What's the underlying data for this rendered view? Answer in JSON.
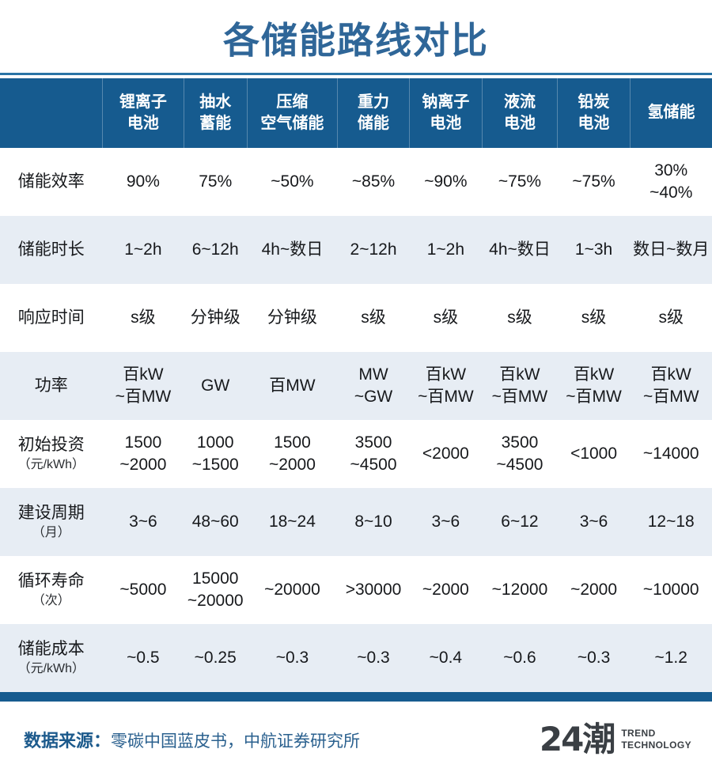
{
  "page": {
    "title": "各储能路线对比"
  },
  "colors": {
    "header_bg": "#165b8f",
    "row_alt_bg": "#e7edf4",
    "title_blue": "#2f6698",
    "footer_blue": "#1c5a8c",
    "logo_gray": "#3a3f44"
  },
  "table": {
    "columns": [
      "锂离子\n电池",
      "抽水\n蓄能",
      "压缩\n空气储能",
      "重力\n储能",
      "钠离子\n电池",
      "液流\n电池",
      "铅炭\n电池",
      "氢储能"
    ],
    "rows": [
      {
        "label": "储能效率",
        "unit": "",
        "values": [
          "90%",
          "75%",
          "~50%",
          "~85%",
          "~90%",
          "~75%",
          "~75%",
          "30%\n~40%"
        ]
      },
      {
        "label": "储能时长",
        "unit": "",
        "values": [
          "1~2h",
          "6~12h",
          "4h~数日",
          "2~12h",
          "1~2h",
          "4h~数日",
          "1~3h",
          "数日~数月"
        ]
      },
      {
        "label": "响应时间",
        "unit": "",
        "values": [
          "s级",
          "分钟级",
          "分钟级",
          "s级",
          "s级",
          "s级",
          "s级",
          "s级"
        ]
      },
      {
        "label": "功率",
        "unit": "",
        "values": [
          "百kW\n~百MW",
          "GW",
          "百MW",
          "MW\n~GW",
          "百kW\n~百MW",
          "百kW\n~百MW",
          "百kW\n~百MW",
          "百kW\n~百MW"
        ]
      },
      {
        "label": "初始投资",
        "unit": "（元/kWh）",
        "values": [
          "1500\n~2000",
          "1000\n~1500",
          "1500\n~2000",
          "3500\n~4500",
          "<2000",
          "3500\n~4500",
          "<1000",
          "~14000"
        ]
      },
      {
        "label": "建设周期",
        "unit": "（月）",
        "values": [
          "3~6",
          "48~60",
          "18~24",
          "8~10",
          "3~6",
          "6~12",
          "3~6",
          "12~18"
        ]
      },
      {
        "label": "循环寿命",
        "unit": "（次）",
        "values": [
          "~5000",
          "15000\n~20000",
          "~20000",
          ">30000",
          "~2000",
          "~12000",
          "~2000",
          "~10000"
        ]
      },
      {
        "label": "储能成本",
        "unit": "（元/kWh）",
        "values": [
          "~0.5",
          "~0.25",
          "~0.3",
          "~0.3",
          "~0.4",
          "~0.6",
          "~0.3",
          "~1.2"
        ]
      }
    ]
  },
  "footer": {
    "source_label": "数据来源：",
    "source_text": "零碳中国蓝皮书，中航证券研究所",
    "logo_text": "24潮",
    "logo_sub1": "TREND",
    "logo_sub2": "TECHNOLOGY"
  }
}
